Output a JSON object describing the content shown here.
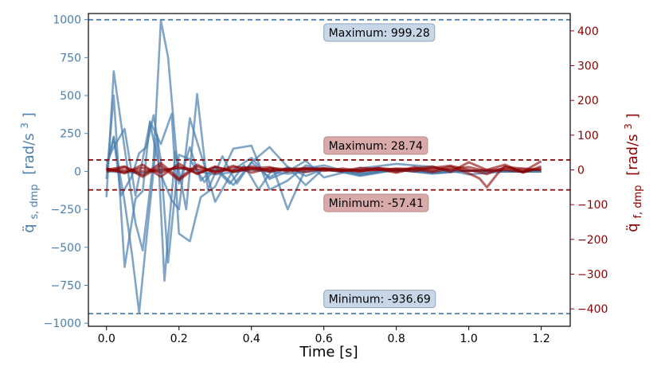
{
  "chart_data": {
    "type": "line",
    "xlabel": "Time [s]",
    "x_ticks": [
      "0.0",
      "0.2",
      "0.4",
      "0.6",
      "0.8",
      "1.0",
      "1.2"
    ],
    "xlim": [
      -0.05,
      1.28
    ],
    "left_axis": {
      "label_main": "q̈",
      "label_sub": "s, dmp",
      "label_unit": "[rad/s",
      "label_unit_sup": "3",
      "label_unit_close": "]",
      "color": "#4a7fae",
      "ylim": [
        -1020,
        1040
      ],
      "ticks": [
        "1000",
        "750",
        "500",
        "250",
        "0",
        "−250",
        "−500",
        "−750",
        "−1000"
      ],
      "tick_values": [
        1000,
        750,
        500,
        250,
        0,
        -250,
        -500,
        -750,
        -1000
      ]
    },
    "right_axis": {
      "label_main": "q̈",
      "label_sub": "f, dmp",
      "label_unit": "[rad/s",
      "label_unit_sup": "3",
      "label_unit_close": "]",
      "color": "#8b0000",
      "ylim": [
        -450,
        450
      ],
      "ticks": [
        "400",
        "300",
        "200",
        "100",
        "0",
        "−100",
        "−200",
        "−300",
        "−400"
      ],
      "tick_values": [
        400,
        300,
        200,
        100,
        0,
        -100,
        -200,
        -300,
        -400
      ]
    },
    "reference_lines": [
      {
        "axis": "left",
        "value": 999.28,
        "color": "#4a7fae"
      },
      {
        "axis": "left",
        "value": -936.69,
        "color": "#4a7fae"
      },
      {
        "axis": "right",
        "value": 28.74,
        "color": "#8b0000"
      },
      {
        "axis": "right",
        "value": -57.41,
        "color": "#8b0000"
      }
    ],
    "annotations": [
      {
        "text": "Maximum: 999.28",
        "axis": "left",
        "x": 0.6,
        "y": 915,
        "style": "blue"
      },
      {
        "text": "Maximum: 28.74",
        "axis": "right",
        "x": 0.6,
        "y": 70,
        "style": "red"
      },
      {
        "text": "Minimum: -57.41",
        "axis": "right",
        "x": 0.6,
        "y": -95,
        "style": "red"
      },
      {
        "text": "Minimum: -936.69",
        "axis": "left",
        "x": 0.6,
        "y": -840,
        "style": "blue"
      }
    ],
    "series_left": [
      {
        "name": "s1",
        "x": [
          0,
          0.02,
          0.05,
          0.08,
          0.1,
          0.13,
          0.15,
          0.17,
          0.2,
          0.23,
          0.26,
          0.3,
          0.35,
          0.4,
          0.45,
          0.5,
          0.55,
          0.6,
          0.7,
          0.8,
          0.9,
          1.0,
          1.1,
          1.2
        ],
        "y": [
          -170,
          660,
          150,
          -340,
          -520,
          80,
          995,
          750,
          -80,
          160,
          -60,
          30,
          -90,
          60,
          -40,
          30,
          -30,
          15,
          -20,
          10,
          -10,
          5,
          0,
          0
        ]
      },
      {
        "name": "s2",
        "x": [
          0,
          0.02,
          0.05,
          0.07,
          0.09,
          0.11,
          0.14,
          0.16,
          0.19,
          0.22,
          0.25,
          0.28,
          0.32,
          0.36,
          0.4,
          0.45,
          0.5,
          0.55,
          0.6,
          0.7,
          0.8,
          0.9,
          1.0,
          1.1,
          1.2
        ],
        "y": [
          30,
          220,
          -200,
          -540,
          -930,
          -450,
          240,
          -720,
          130,
          -250,
          510,
          -120,
          100,
          -80,
          60,
          160,
          30,
          -90,
          20,
          -30,
          10,
          -15,
          5,
          0,
          0
        ]
      },
      {
        "name": "s3",
        "x": [
          0,
          0.02,
          0.05,
          0.08,
          0.1,
          0.12,
          0.15,
          0.18,
          0.2,
          0.23,
          0.26,
          0.3,
          0.35,
          0.4,
          0.45,
          0.5,
          0.55,
          0.6,
          0.7,
          0.8,
          0.9,
          1.0,
          1.1,
          1.2
        ],
        "y": [
          -50,
          500,
          -630,
          -180,
          -130,
          330,
          180,
          380,
          -410,
          -460,
          -170,
          -100,
          150,
          170,
          -120,
          -60,
          40,
          10,
          -15,
          10,
          -10,
          5,
          0,
          0
        ]
      },
      {
        "name": "s4",
        "x": [
          0,
          0.02,
          0.04,
          0.07,
          0.09,
          0.11,
          0.13,
          0.15,
          0.17,
          0.2,
          0.23,
          0.27,
          0.3,
          0.34,
          0.38,
          0.42,
          0.46,
          0.5,
          0.55,
          0.6,
          0.7,
          0.8,
          0.9,
          1.0,
          1.1,
          1.2
        ],
        "y": [
          10,
          230,
          -160,
          -30,
          120,
          160,
          370,
          70,
          -600,
          110,
          80,
          -70,
          20,
          -80,
          40,
          -120,
          20,
          -250,
          20,
          40,
          -25,
          15,
          -10,
          5,
          0,
          0
        ]
      },
      {
        "name": "s5",
        "x": [
          0,
          0.02,
          0.05,
          0.08,
          0.1,
          0.12,
          0.15,
          0.18,
          0.2,
          0.23,
          0.27,
          0.3,
          0.35,
          0.4,
          0.45,
          0.5,
          0.55,
          0.6,
          0.7,
          0.8,
          0.9,
          1.0,
          1.1,
          1.2
        ],
        "y": [
          60,
          160,
          280,
          -160,
          80,
          320,
          -20,
          -190,
          -250,
          350,
          40,
          -200,
          10,
          90,
          -50,
          0,
          70,
          -40,
          20,
          50,
          30,
          -20,
          0,
          0
        ]
      },
      {
        "name": "s6",
        "x": [
          0,
          0.1,
          0.2,
          0.3,
          0.4,
          0.5,
          0.6,
          0.7,
          0.8,
          0.9,
          1.0,
          1.1,
          1.2
        ],
        "y": [
          0,
          -10,
          20,
          -20,
          10,
          -15,
          10,
          -5,
          5,
          0,
          5,
          0,
          0
        ]
      }
    ],
    "series_right": [
      {
        "name": "r1",
        "x": [
          0,
          0.05,
          0.1,
          0.15,
          0.2,
          0.25,
          0.3,
          0.35,
          0.4,
          0.45,
          0.5,
          0.55,
          0.6,
          0.65,
          0.7,
          0.75,
          0.8,
          0.85,
          0.9,
          0.95,
          1.0,
          1.03,
          1.05,
          1.08,
          1.1,
          1.15,
          1.2
        ],
        "y": [
          0,
          10,
          -15,
          20,
          -25,
          15,
          -10,
          8,
          6,
          -5,
          4,
          2,
          5,
          -3,
          0,
          5,
          -5,
          8,
          -2,
          10,
          -10,
          -25,
          -50,
          -10,
          10,
          -5,
          25
        ]
      },
      {
        "name": "r2",
        "x": [
          0,
          0.05,
          0.1,
          0.15,
          0.2,
          0.25,
          0.3,
          0.35,
          0.4,
          0.45,
          0.5,
          0.55,
          0.6,
          0.65,
          0.7,
          0.75,
          0.8,
          0.85,
          0.9,
          0.95,
          1.0,
          1.05,
          1.1,
          1.15,
          1.2
        ],
        "y": [
          5,
          -10,
          15,
          -20,
          18,
          -12,
          10,
          -6,
          4,
          8,
          -5,
          3,
          0,
          -4,
          6,
          2,
          -8,
          4,
          10,
          -6,
          22,
          0,
          15,
          -8,
          10
        ]
      },
      {
        "name": "r3",
        "x": [
          0,
          0.05,
          0.1,
          0.15,
          0.2,
          0.25,
          0.3,
          0.35,
          0.4,
          0.45,
          0.5,
          0.55,
          0.6,
          0.65,
          0.7,
          0.75,
          0.8,
          0.85,
          0.9,
          0.95,
          1.0,
          1.05,
          1.1,
          1.15,
          1.2
        ],
        "y": [
          -5,
          8,
          -20,
          12,
          -30,
          10,
          -5,
          12,
          -8,
          5,
          2,
          -6,
          4,
          0,
          -5,
          6,
          0,
          -4,
          6,
          12,
          0,
          -12,
          8,
          4,
          0
        ]
      },
      {
        "name": "r4",
        "x": [
          0,
          0.05,
          0.1,
          0.15,
          0.2,
          0.25,
          0.3,
          0.35,
          0.4,
          0.45,
          0.5,
          0.55,
          0.6,
          0.65,
          0.7,
          0.75,
          0.8,
          0.85,
          0.9,
          0.95,
          1.0,
          1.05,
          1.1,
          1.15,
          1.2
        ],
        "y": [
          0,
          -6,
          6,
          -8,
          10,
          -10,
          8,
          -4,
          10,
          -2,
          0,
          6,
          -3,
          4,
          -2,
          0,
          4,
          2,
          -6,
          4,
          8,
          -4,
          0,
          -6,
          5
        ]
      },
      {
        "name": "r5",
        "x": [
          0,
          0.1,
          0.2,
          0.3,
          0.4,
          0.5,
          0.6,
          0.7,
          0.8,
          0.9,
          1.0,
          1.1,
          1.2
        ],
        "y": [
          2,
          -4,
          5,
          -3,
          2,
          0,
          3,
          -2,
          2,
          4,
          -3,
          2,
          0
        ]
      }
    ]
  }
}
